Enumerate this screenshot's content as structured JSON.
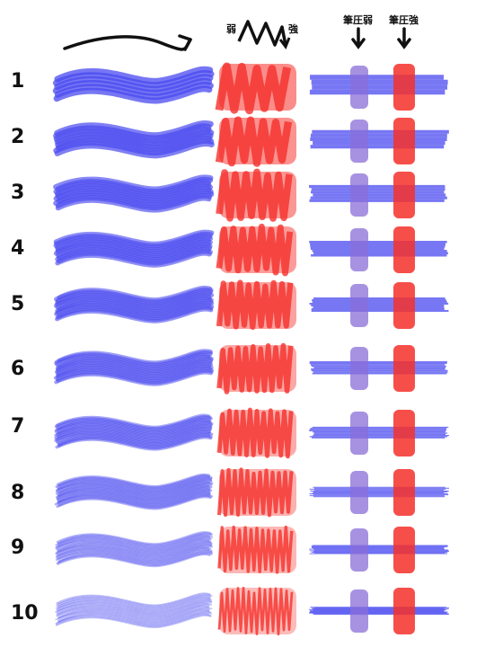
{
  "header": {
    "weak_label": "弱",
    "strong_label": "強",
    "pen_pressure_weak": "筆圧弱",
    "pen_pressure_strong": "筆圧強"
  },
  "rows": [
    "1",
    "2",
    "3",
    "4",
    "5",
    "6",
    "7",
    "8",
    "9",
    "10"
  ],
  "colors": {
    "blue": "#4a4af0",
    "red": "#f5302a",
    "purple": "#8a6ed8"
  }
}
